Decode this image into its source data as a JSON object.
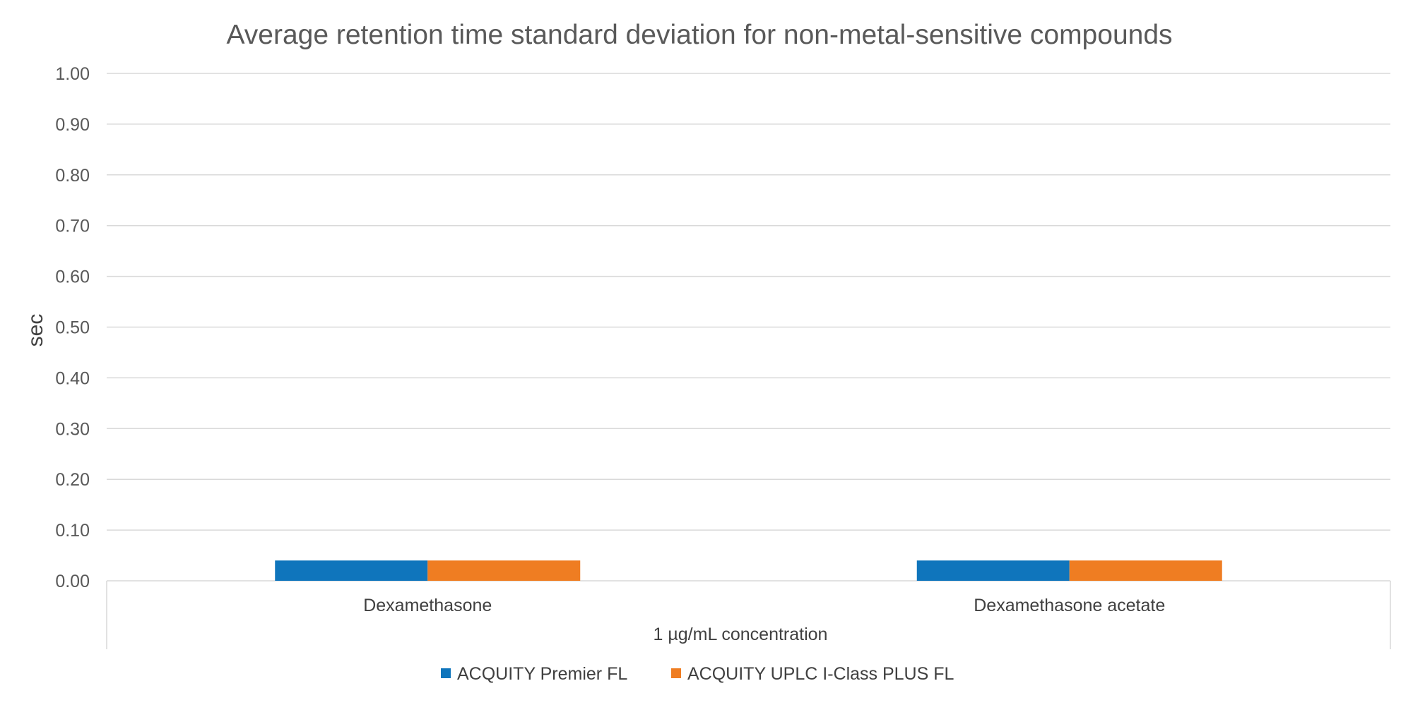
{
  "chart_data": {
    "type": "bar",
    "title": "Average retention time standard deviation for non-metal-sensitive compounds",
    "ylabel": "sec",
    "xlabel": "1 µg/mL concentration",
    "ylim": [
      0,
      1.0
    ],
    "yticks": [
      "0.00",
      "0.10",
      "0.20",
      "0.30",
      "0.40",
      "0.50",
      "0.60",
      "0.70",
      "0.80",
      "0.90",
      "1.00"
    ],
    "categories": [
      "Dexamethasone",
      "Dexamethasone acetate"
    ],
    "series": [
      {
        "name": "ACQUITY Premier FL",
        "color": "#0f75bc",
        "values": [
          0.04,
          0.04
        ]
      },
      {
        "name": "ACQUITY UPLC I-Class PLUS FL",
        "color": "#ef7d22",
        "values": [
          0.04,
          0.04
        ]
      }
    ],
    "grid": true,
    "legend": "bottom"
  }
}
